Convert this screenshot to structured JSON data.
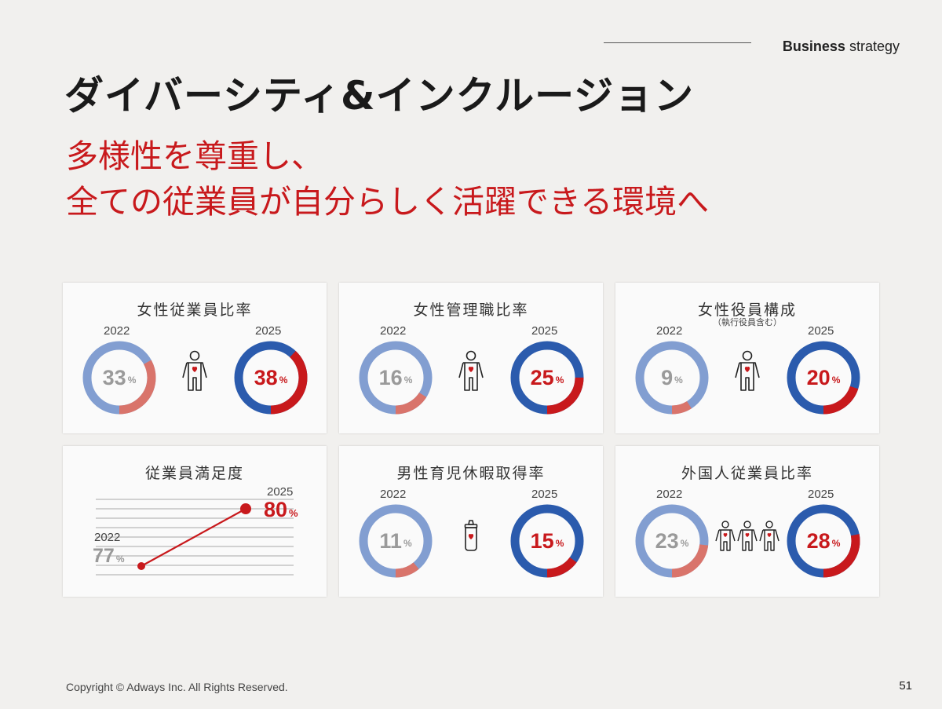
{
  "header": {
    "section_bold": "Business",
    "section_rest": "strategy"
  },
  "title": "ダイバーシティ&インクルージョン",
  "subtitle": {
    "line1": "多様性を尊重し、",
    "line2": "全ての従業員が自分らしく活躍できる環境へ"
  },
  "colors": {
    "red": "#c8191c",
    "blue": "#2b5bad",
    "light_blue": "#829ed1",
    "light_red": "#d9746b"
  },
  "chart_data": [
    {
      "type": "pie",
      "title": "女性従業員比率",
      "icon": "person-heart-icon",
      "series": [
        {
          "name": "2022",
          "value": 33,
          "label": "33",
          "unit": "%"
        },
        {
          "name": "2025",
          "value": 38,
          "label": "38",
          "unit": "%"
        }
      ]
    },
    {
      "type": "pie",
      "title": "女性管理職比率",
      "icon": "person-heart-icon",
      "series": [
        {
          "name": "2022",
          "value": 16,
          "label": "16",
          "unit": "%"
        },
        {
          "name": "2025",
          "value": 25,
          "label": "25",
          "unit": "%"
        }
      ]
    },
    {
      "type": "pie",
      "title": "女性役員構成",
      "note": "（執行役員含む）",
      "icon": "person-heart-icon",
      "series": [
        {
          "name": "2022",
          "value": 9,
          "label": "9",
          "unit": "%"
        },
        {
          "name": "2025",
          "value": 20,
          "label": "20",
          "unit": "%"
        }
      ]
    },
    {
      "type": "line",
      "title": "従業員満足度",
      "x": [
        "2022",
        "2025"
      ],
      "values": [
        77,
        80
      ],
      "labels": [
        "77",
        "80"
      ],
      "unit": "%"
    },
    {
      "type": "pie",
      "title": "男性育児休暇取得率",
      "icon": "baby-bottle-icon",
      "series": [
        {
          "name": "2022",
          "value": 11,
          "label": "11",
          "unit": "%"
        },
        {
          "name": "2025",
          "value": 15,
          "label": "15",
          "unit": "%"
        }
      ]
    },
    {
      "type": "pie",
      "title": "外国人従業員比率",
      "icon": "three-people-icon",
      "series": [
        {
          "name": "2022",
          "value": 23,
          "label": "23",
          "unit": "%"
        },
        {
          "name": "2025",
          "value": 28,
          "label": "28",
          "unit": "%"
        }
      ]
    }
  ],
  "footer": {
    "copyright": "Copyright © Adways Inc. All Rights Reserved.",
    "page": "51"
  }
}
